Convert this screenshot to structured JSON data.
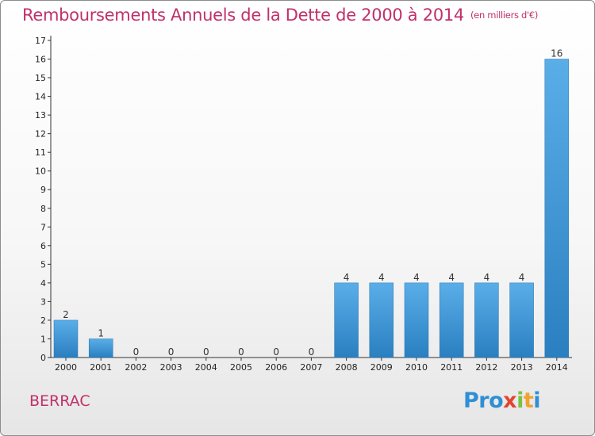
{
  "header": {
    "title": "Remboursements Annuels de la Dette de 2000 à 2014",
    "unit": "(en milliers d'€)"
  },
  "footer": {
    "town": "BERRAC",
    "logo": [
      "Pro",
      "x",
      "i",
      "t",
      "i"
    ]
  },
  "colors": {
    "title": "#c0306a",
    "bar_light": "#5aaee8",
    "bar_dark": "#2a7fc0"
  },
  "chart_data": {
    "type": "bar",
    "categories": [
      "2000",
      "2001",
      "2002",
      "2003",
      "2004",
      "2005",
      "2006",
      "2007",
      "2008",
      "2009",
      "2010",
      "2011",
      "2012",
      "2013",
      "2014"
    ],
    "values": [
      2,
      1,
      0,
      0,
      0,
      0,
      0,
      0,
      4,
      4,
      4,
      4,
      4,
      4,
      16
    ],
    "data_labels": [
      "2",
      "1",
      "0",
      "0",
      "0",
      "0",
      "0",
      "0",
      "4",
      "4",
      "4",
      "4",
      "4",
      "4",
      "16"
    ],
    "y_ticks": [
      0,
      1,
      2,
      3,
      4,
      5,
      6,
      7,
      8,
      9,
      10,
      11,
      12,
      13,
      14,
      15,
      16,
      17
    ],
    "ylim": [
      0,
      17
    ],
    "grid": false,
    "xlabel": "",
    "ylabel": ""
  }
}
